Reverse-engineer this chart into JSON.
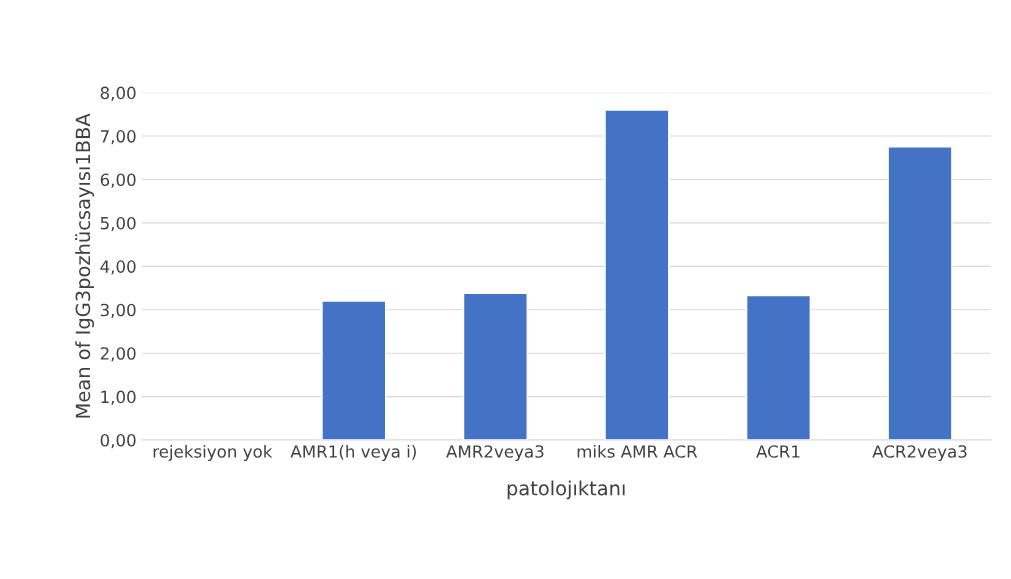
{
  "chart_data": {
    "type": "bar",
    "xlabel": "patolojıktanı",
    "ylabel": "Mean of IgG3pozhücsayısı1BBA",
    "categories": [
      "rejeksiyon yok",
      "AMR1(h veya i)",
      "AMR2veya3",
      "miks AMR ACR",
      "ACR1",
      "ACR2veya3"
    ],
    "values": [
      null,
      3.2,
      3.38,
      7.6,
      3.33,
      6.75
    ],
    "color": "#4472c4",
    "ylim": [
      0,
      8
    ],
    "yticks": [
      {
        "value": 0,
        "label": "0,00"
      },
      {
        "value": 1,
        "label": "1,00"
      },
      {
        "value": 2,
        "label": "2,00"
      },
      {
        "value": 3,
        "label": "3,00"
      },
      {
        "value": 4,
        "label": "4,00"
      },
      {
        "value": 5,
        "label": "5,00"
      },
      {
        "value": 6,
        "label": "6,00"
      },
      {
        "value": 7,
        "label": "7,00"
      },
      {
        "value": 8,
        "label": "8,00"
      }
    ],
    "grid": "y"
  }
}
